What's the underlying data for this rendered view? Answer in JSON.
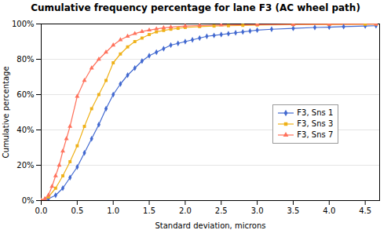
{
  "chart_data": {
    "type": "line",
    "title": "Cumulative frequency percentage for lane F3 (AC wheel path)",
    "xlabel": "Standard deviation, microns",
    "ylabel": "Cumulative percentage",
    "xlim": [
      0,
      4.7
    ],
    "ylim": [
      0,
      1.0
    ],
    "xticks": [
      {
        "value": 0,
        "label": "0.0"
      },
      0.5,
      {
        "value": 1.0,
        "label": "1.0"
      },
      1.5,
      {
        "value": 2.0,
        "label": "2.0"
      },
      2.5,
      {
        "value": 3.0,
        "label": "3.0"
      },
      3.5,
      {
        "value": 4.0,
        "label": "4.0"
      },
      4.5
    ],
    "yticks": [
      {
        "value": 0,
        "label": "0%"
      },
      {
        "value": 0.2,
        "label": "20%"
      },
      {
        "value": 0.4,
        "label": "40%"
      },
      {
        "value": 0.6,
        "label": "60%"
      },
      {
        "value": 0.8,
        "label": "80%"
      },
      {
        "value": 1.0,
        "label": "100%"
      }
    ],
    "grid": true,
    "legend": "lower right",
    "series": [
      {
        "name": "F3, Sns 1",
        "marker": "diamond",
        "x": [
          0,
          0.1,
          0.2,
          0.3,
          0.4,
          0.5,
          0.6,
          0.7,
          0.8,
          0.9,
          1.0,
          1.1,
          1.2,
          1.3,
          1.4,
          1.5,
          1.6,
          1.7,
          1.8,
          1.9,
          2.0,
          2.1,
          2.2,
          2.3,
          2.4,
          2.5,
          2.6,
          2.7,
          2.8,
          2.9,
          3.0,
          3.2,
          3.5,
          3.8,
          4.0,
          4.2,
          4.5,
          4.65
        ],
        "values": [
          0,
          0.01,
          0.03,
          0.07,
          0.13,
          0.19,
          0.27,
          0.35,
          0.43,
          0.52,
          0.6,
          0.66,
          0.71,
          0.75,
          0.79,
          0.82,
          0.84,
          0.86,
          0.88,
          0.89,
          0.9,
          0.91,
          0.92,
          0.93,
          0.935,
          0.94,
          0.945,
          0.95,
          0.955,
          0.96,
          0.965,
          0.97,
          0.975,
          0.98,
          0.982,
          0.985,
          0.988,
          0.99
        ]
      },
      {
        "name": "F3, Sns 3",
        "marker": "square",
        "x": [
          0,
          0.1,
          0.2,
          0.3,
          0.4,
          0.5,
          0.6,
          0.7,
          0.8,
          0.9,
          1.0,
          1.1,
          1.2,
          1.3,
          1.4,
          1.5,
          1.6,
          1.7,
          1.8,
          1.9,
          2.0,
          2.2,
          2.4,
          2.6,
          2.8,
          3.0,
          3.5,
          4.0,
          4.5,
          4.65
        ],
        "values": [
          0,
          0.02,
          0.07,
          0.14,
          0.22,
          0.31,
          0.42,
          0.52,
          0.6,
          0.68,
          0.78,
          0.83,
          0.87,
          0.9,
          0.92,
          0.94,
          0.955,
          0.963,
          0.97,
          0.975,
          0.98,
          0.985,
          0.988,
          0.99,
          0.992,
          0.994,
          0.996,
          0.997,
          0.998,
          0.999
        ]
      },
      {
        "name": "F3, Sns 7",
        "marker": "triangle",
        "x": [
          0,
          0.05,
          0.1,
          0.15,
          0.2,
          0.25,
          0.3,
          0.35,
          0.4,
          0.5,
          0.6,
          0.7,
          0.8,
          0.9,
          1.0,
          1.1,
          1.2,
          1.3,
          1.4,
          1.5,
          1.6,
          1.7,
          1.8,
          2.0,
          2.2,
          2.5,
          3.0,
          3.5,
          4.0,
          4.65
        ],
        "values": [
          0,
          0.01,
          0.03,
          0.08,
          0.14,
          0.2,
          0.28,
          0.35,
          0.42,
          0.59,
          0.68,
          0.75,
          0.8,
          0.84,
          0.88,
          0.91,
          0.93,
          0.945,
          0.957,
          0.965,
          0.972,
          0.978,
          0.982,
          0.988,
          0.991,
          0.994,
          0.996,
          0.997,
          0.998,
          0.999
        ]
      }
    ]
  }
}
